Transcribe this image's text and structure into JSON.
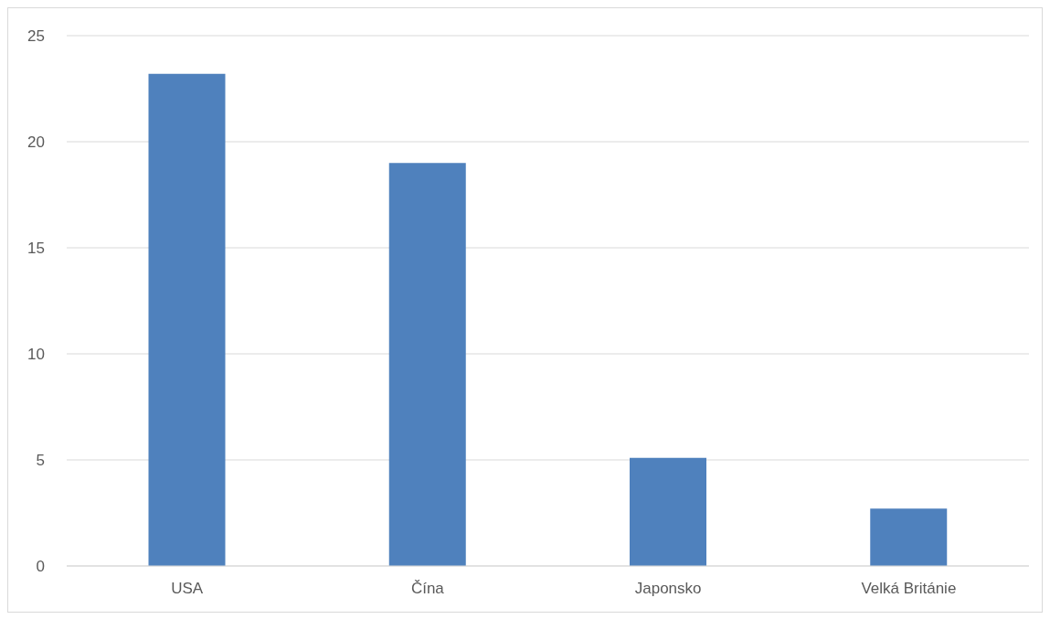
{
  "chart_data": {
    "type": "bar",
    "categories": [
      "USA",
      "Čína",
      "Japonsko",
      "Velká Británie"
    ],
    "values": [
      23.2,
      19.0,
      5.1,
      2.7
    ],
    "color": "#4f81bd",
    "ylim": [
      0,
      25
    ],
    "yticks": [
      0,
      5,
      10,
      15,
      20,
      25
    ],
    "grid": "y"
  }
}
